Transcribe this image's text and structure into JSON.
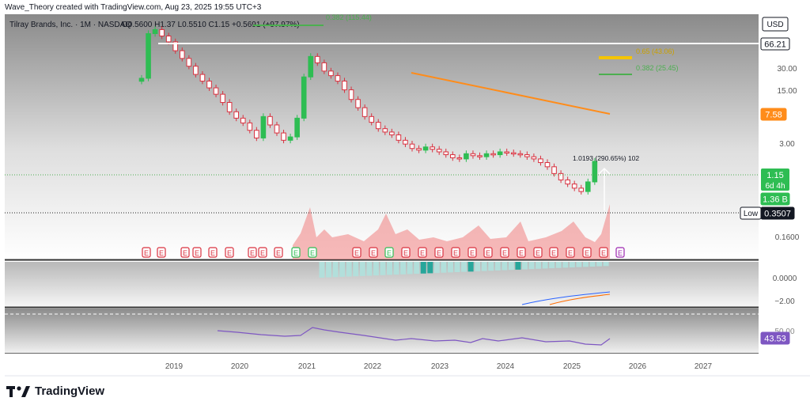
{
  "header": {
    "credit": "Wave_Theory created with TradingView.com, Aug 23, 2025 19:55 UTC+3",
    "symbol": "Tilray Brands, Inc. · 1M · NASDAQ",
    "ohlc": "O0.5600 H1.37 L0.5510 C1.15 +0.5691 (+97.97%)"
  },
  "brand": {
    "name": "TradingView"
  },
  "chart_data": {
    "type": "candlestick",
    "currency_button": "USD",
    "x_ticks": [
      "2019",
      "2020",
      "2021",
      "2022",
      "2023",
      "2024",
      "2025",
      "2026",
      "2027"
    ],
    "y_ticks_main": [
      "30.00",
      "15.00",
      "3.00",
      "0.1600"
    ],
    "price_badges": [
      {
        "label": "66.21",
        "style": "white",
        "value": 66.21
      },
      {
        "label": "7.58",
        "style": "orange",
        "value": 7.58
      },
      {
        "label": "1.15",
        "sub": "6d 4h",
        "style": "green",
        "value": 1.15
      },
      {
        "label": "1.36 B",
        "style": "green-volume"
      },
      {
        "label": "0.3507",
        "prefix": "Low",
        "style": "black",
        "value": 0.3507
      }
    ],
    "fib_levels": [
      {
        "label": "0.382 (115.44)",
        "color": "#4caf50"
      },
      {
        "label": "0.65 (43.06)",
        "color": "#f5c400"
      },
      {
        "label": "0.382 (25.45)",
        "color": "#4caf50"
      }
    ],
    "annotation": "1.0193 (290.65%) 102",
    "series": [
      {
        "name": "price",
        "values": [
          21,
          100,
          115,
          92,
          75,
          55,
          42,
          32,
          24,
          19,
          15,
          12,
          9,
          6.5,
          5.2,
          4.4,
          3.4,
          2.6,
          5.5,
          4.1,
          3.1,
          2.4,
          2.7,
          5.2,
          22,
          45,
          36,
          27,
          23,
          19,
          14,
          10,
          7.5,
          5.5,
          4.5,
          3.6,
          3.2,
          2.9,
          2.4,
          2.1,
          1.8,
          1.7,
          1.9,
          1.75,
          1.6,
          1.45,
          1.3,
          1.25,
          1.5,
          1.4,
          1.35,
          1.5,
          1.45,
          1.6,
          1.55,
          1.5,
          1.45,
          1.35,
          1.25,
          1.1,
          0.95,
          0.75,
          0.6,
          0.52,
          0.45,
          0.4,
          0.56,
          1.15
        ]
      }
    ],
    "macd_ticks": [
      "0.0000",
      "−2.00"
    ],
    "rsi_ticks": [
      "50.00"
    ],
    "rsi_value": "43.53",
    "earnings_marker": "E"
  }
}
